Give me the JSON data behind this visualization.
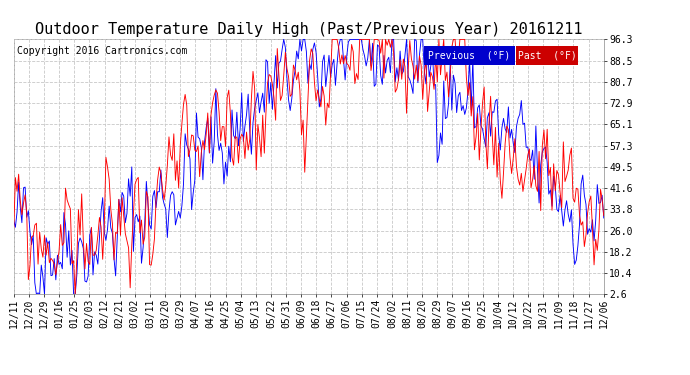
{
  "title": "Outdoor Temperature Daily High (Past/Previous Year) 20161211",
  "copyright": "Copyright 2016 Cartronics.com",
  "legend_prev_label": "Previous  (°F)",
  "legend_past_label": "Past  (°F)",
  "line_color_previous": "#0000ff",
  "line_color_past": "#ff0000",
  "background_color": "#ffffff",
  "grid_color": "#c8c8c8",
  "yticks": [
    2.6,
    10.4,
    18.2,
    26.0,
    33.8,
    41.6,
    49.5,
    57.3,
    65.1,
    72.9,
    80.7,
    88.5,
    96.3
  ],
  "ylim_min": 2.6,
  "ylim_max": 96.3,
  "xtick_labels": [
    "12/11",
    "12/20",
    "12/29",
    "01/16",
    "01/25",
    "02/03",
    "02/12",
    "02/21",
    "03/02",
    "03/11",
    "03/20",
    "03/29",
    "04/07",
    "04/16",
    "04/25",
    "05/04",
    "05/13",
    "05/22",
    "05/31",
    "06/09",
    "06/18",
    "06/27",
    "07/06",
    "07/15",
    "07/24",
    "08/02",
    "08/11",
    "08/20",
    "08/29",
    "09/07",
    "09/16",
    "09/25",
    "10/04",
    "10/12",
    "10/22",
    "10/31",
    "11/09",
    "11/18",
    "11/27",
    "12/06"
  ],
  "title_fontsize": 11,
  "copyright_fontsize": 7,
  "tick_fontsize": 7,
  "legend_fontsize": 7,
  "n_days": 366,
  "legend_prev_color": "#0000cc",
  "legend_past_color": "#cc0000"
}
